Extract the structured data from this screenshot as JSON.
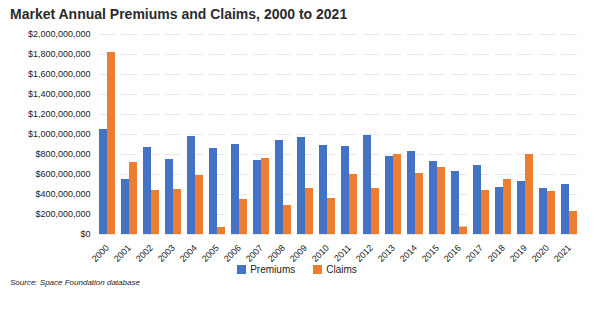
{
  "chart_data": {
    "type": "bar",
    "title": "Market Annual Premiums and Claims, 2000 to 2021",
    "caption": "Source: Space Foundation database",
    "categories": [
      "2000",
      "2001",
      "2002",
      "2003",
      "2004",
      "2005",
      "2006",
      "2007",
      "2008",
      "2009",
      "2010",
      "2011",
      "2012",
      "2013",
      "2014",
      "2015",
      "2016",
      "2017",
      "2018",
      "2019",
      "2020",
      "2021"
    ],
    "series": [
      {
        "name": "Premiums",
        "color": "#4472c4",
        "values": [
          1050000000,
          550000000,
          870000000,
          750000000,
          980000000,
          860000000,
          900000000,
          740000000,
          940000000,
          970000000,
          890000000,
          880000000,
          990000000,
          780000000,
          830000000,
          730000000,
          630000000,
          690000000,
          470000000,
          530000000,
          460000000,
          500000000
        ]
      },
      {
        "name": "Claims",
        "color": "#ed7d31",
        "values": [
          1820000000,
          720000000,
          440000000,
          450000000,
          590000000,
          70000000,
          350000000,
          760000000,
          290000000,
          460000000,
          360000000,
          600000000,
          460000000,
          800000000,
          610000000,
          670000000,
          75000000,
          440000000,
          550000000,
          800000000,
          430000000,
          230000000
        ]
      }
    ],
    "ylim": [
      0,
      2000000000
    ],
    "yticks": [
      {
        "value": 0,
        "label": "$0"
      },
      {
        "value": 200000000,
        "label": "$200,000,000"
      },
      {
        "value": 400000000,
        "label": "$400,000,000"
      },
      {
        "value": 600000000,
        "label": "$600,000,000"
      },
      {
        "value": 800000000,
        "label": "$800,000,000"
      },
      {
        "value": 1000000000,
        "label": "$1,000,000,000"
      },
      {
        "value": 1200000000,
        "label": "$1,200,000,000"
      },
      {
        "value": 1400000000,
        "label": "$1,400,000,000"
      },
      {
        "value": 1600000000,
        "label": "$1,600,000,000"
      },
      {
        "value": 1800000000,
        "label": "$1,800,000,000"
      },
      {
        "value": 2000000000,
        "label": "$2,000,000,000"
      }
    ],
    "grid": true,
    "legend": "bottom"
  }
}
